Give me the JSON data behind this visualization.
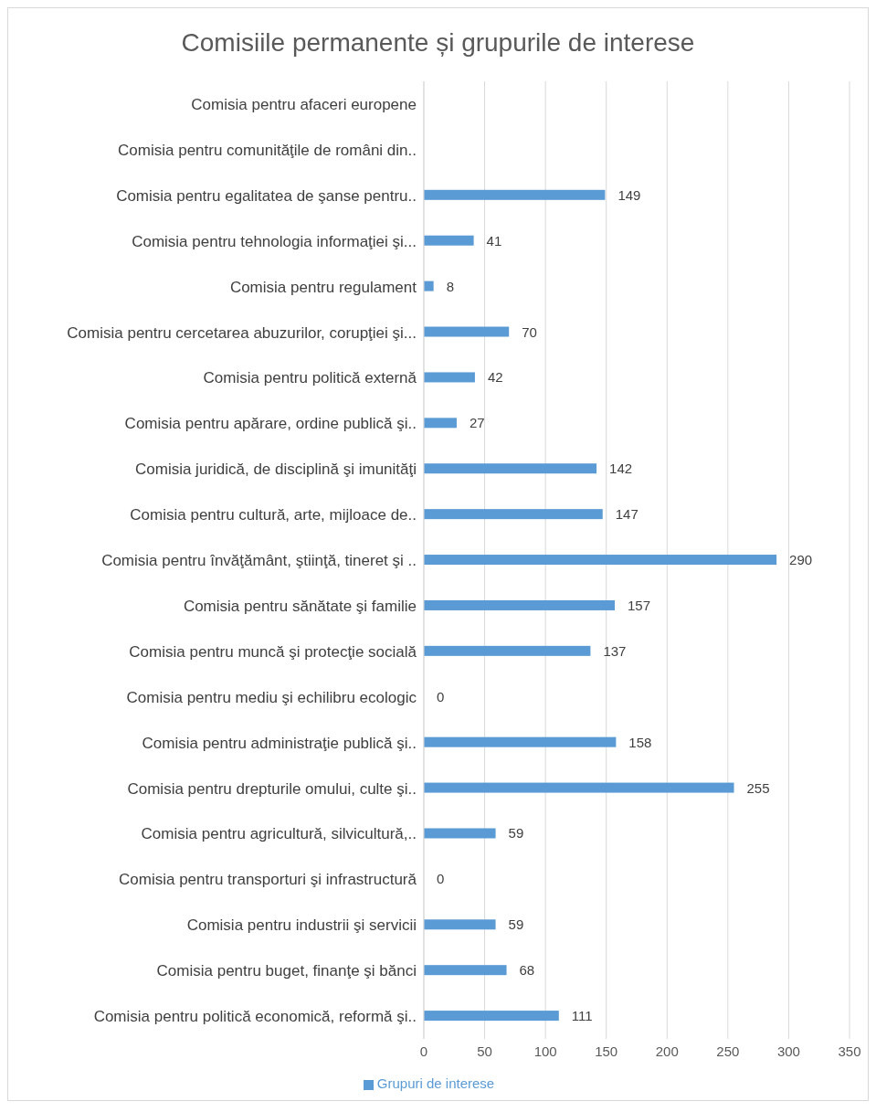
{
  "chart_data": {
    "type": "bar",
    "orientation": "horizontal",
    "title": "Comisiile permanente și grupurile de interese",
    "categories": [
      "Comisia pentru afaceri europene",
      "Comisia pentru comunităţile de români din..",
      "Comisia pentru egalitatea de şanse pentru..",
      "Comisia pentru tehnologia informaţiei şi...",
      "Comisia pentru regulament",
      "Comisia pentru cercetarea abuzurilor,  corupţiei şi...",
      "Comisia pentru politică externă",
      "Comisia pentru apărare, ordine publică şi..",
      "Comisia juridică, de disciplină şi imunităţi",
      "Comisia pentru cultură, arte, mijloace de..",
      "Comisia pentru învăţământ, ştiinţă, tineret şi ..",
      "Comisia pentru sănătate şi familie",
      "Comisia pentru muncă şi protecţie socială",
      "Comisia pentru mediu şi echilibru ecologic",
      "Comisia pentru administraţie publică şi..",
      "Comisia pentru drepturile omului, culte şi..",
      "Comisia pentru agricultură, silvicultură,..",
      "Comisia pentru transporturi şi infrastructură",
      "Comisia pentru industrii şi servicii",
      "Comisia pentru buget, finanţe şi bănci",
      "Comisia pentru politică economică, reformă şi.."
    ],
    "series": [
      {
        "name": "Grupuri de interese",
        "color": "#5b9bd5",
        "values": [
          null,
          null,
          149,
          41,
          8,
          70,
          42,
          27,
          142,
          147,
          290,
          157,
          137,
          0,
          158,
          255,
          59,
          0,
          59,
          68,
          111
        ]
      }
    ],
    "xlim": [
      0,
      350
    ],
    "xticks": [
      0,
      50,
      100,
      150,
      200,
      250,
      300,
      350
    ],
    "grid": "x",
    "legend": "bottom",
    "data_labels": true
  }
}
